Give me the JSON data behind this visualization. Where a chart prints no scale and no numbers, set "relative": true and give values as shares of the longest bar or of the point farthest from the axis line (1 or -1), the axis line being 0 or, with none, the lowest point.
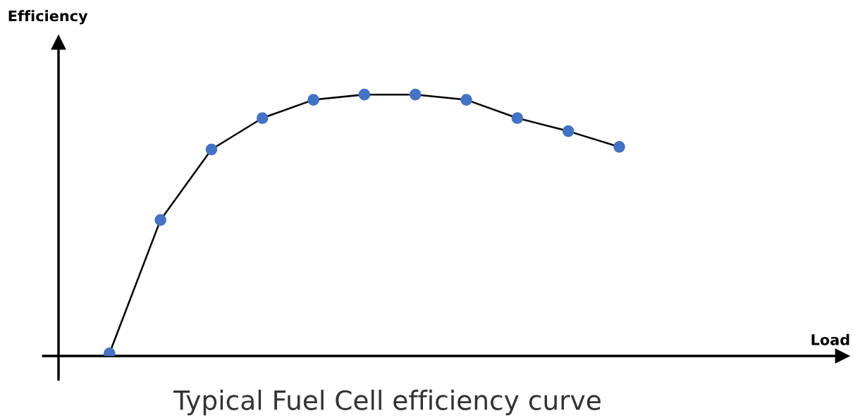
{
  "chart_data": {
    "type": "line",
    "relative": true,
    "categories": [
      null,
      null,
      null,
      null,
      null,
      null,
      null,
      null,
      null,
      null,
      null
    ],
    "series": [
      {
        "color": "#000000",
        "colors": [
          "#4472c4",
          "#4472c4",
          "#4472c4",
          "#4472c4",
          "#4472c4",
          "#4472c4",
          "#4472c4",
          "#4472c4",
          "#4472c4",
          "#4472c4",
          "#4472c4"
        ],
        "values": [
          0.01,
          0.52,
          0.79,
          0.91,
          0.98,
          1,
          1,
          0.98,
          0.91,
          0.86,
          0.8
        ]
      }
    ],
    "ylabel": "Efficiency",
    "annotations": [
      "Typical Fuel Cell efficiency curve",
      "Load"
    ],
    "marker": "circle",
    "line_style": "solid",
    "legend": false
  }
}
